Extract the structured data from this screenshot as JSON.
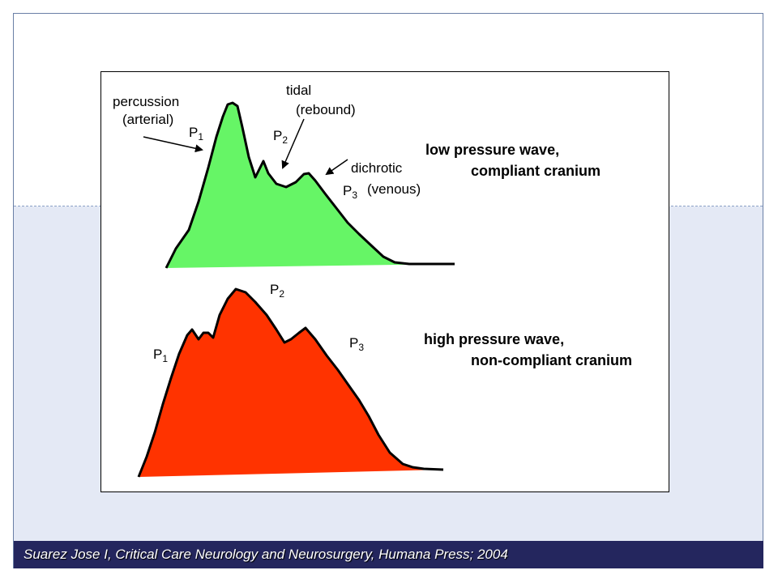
{
  "figure": {
    "labels": {
      "percussion": "percussion",
      "arterial": "(arterial)",
      "tidal": "tidal",
      "rebound": "(rebound)",
      "dichrotic": "dichrotic",
      "venous": "(venous)",
      "p1_low": "P",
      "p1_low_sub": "1",
      "p2_low": "P",
      "p2_low_sub": "2",
      "p3_low": "P",
      "p3_low_sub": "3",
      "p1_high": "P",
      "p1_high_sub": "1",
      "p2_high": "P",
      "p2_high_sub": "2",
      "p3_high": "P",
      "p3_high_sub": "3"
    },
    "low_wave": {
      "title_line1": "low pressure wave,",
      "title_line2": "compliant cranium",
      "fill_color": "#66f566"
    },
    "high_wave": {
      "title_line1": "high pressure wave,",
      "title_line2": "non-compliant cranium",
      "fill_color": "#ff3300"
    }
  },
  "caption": "Suarez Jose I, Critical Care Neurology and Neurosurgery, Humana Press; 2004"
}
